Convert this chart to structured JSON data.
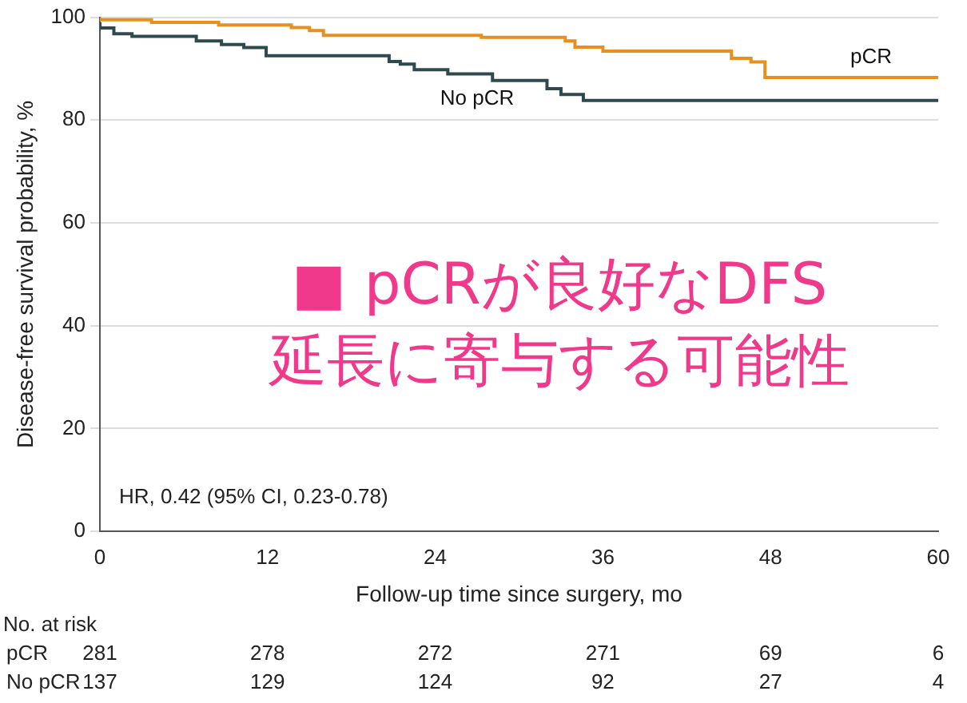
{
  "chart_data": {
    "type": "step",
    "xlabel": "Follow-up time since surgery, mo",
    "ylabel": "Disease-free survival probability, %",
    "xlim": [
      0,
      60
    ],
    "xticks": [
      0,
      12,
      24,
      36,
      48,
      60
    ],
    "ylim": [
      0,
      100
    ],
    "yticks": [
      0,
      20,
      40,
      60,
      80,
      100
    ],
    "grid": "y",
    "legend": false,
    "series": [
      {
        "name": "pCR",
        "color": "#e8901e",
        "x": [
          0,
          3.7,
          8.5,
          13.7,
          15,
          16,
          27.3,
          33.3,
          34,
          36,
          45.2,
          46.6,
          47.6,
          52.4,
          60
        ],
        "values": [
          100,
          99.5,
          99,
          98.5,
          98,
          97.4,
          96.5,
          96.1,
          95.4,
          94.2,
          93.4,
          92,
          91.3,
          88.3,
          88.3
        ]
      },
      {
        "name": "No pCR",
        "color": "#2f4a4f",
        "x": [
          0,
          1,
          2.3,
          6.9,
          8.7,
          10.3,
          11.9,
          20.7,
          21.5,
          22.5,
          24.9,
          28.1,
          32,
          33,
          34.6,
          38.6,
          60
        ],
        "values": [
          99,
          97.9,
          96.8,
          96.3,
          95.4,
          94.7,
          94.1,
          92.5,
          91.4,
          90.9,
          89.8,
          89,
          87.7,
          86.1,
          85,
          83.8,
          83.8
        ]
      }
    ],
    "annotations": [
      "HR, 0.42 (95% CI, 0.23-0.78)",
      "■ pCRが良好なDFS延長に寄与する可能性",
      "No. at risk",
      "pCR",
      "281",
      "278",
      "272",
      "271",
      "69",
      "6",
      "No pCR",
      "137",
      "129",
      "124",
      "92",
      "27",
      "4"
    ]
  }
}
